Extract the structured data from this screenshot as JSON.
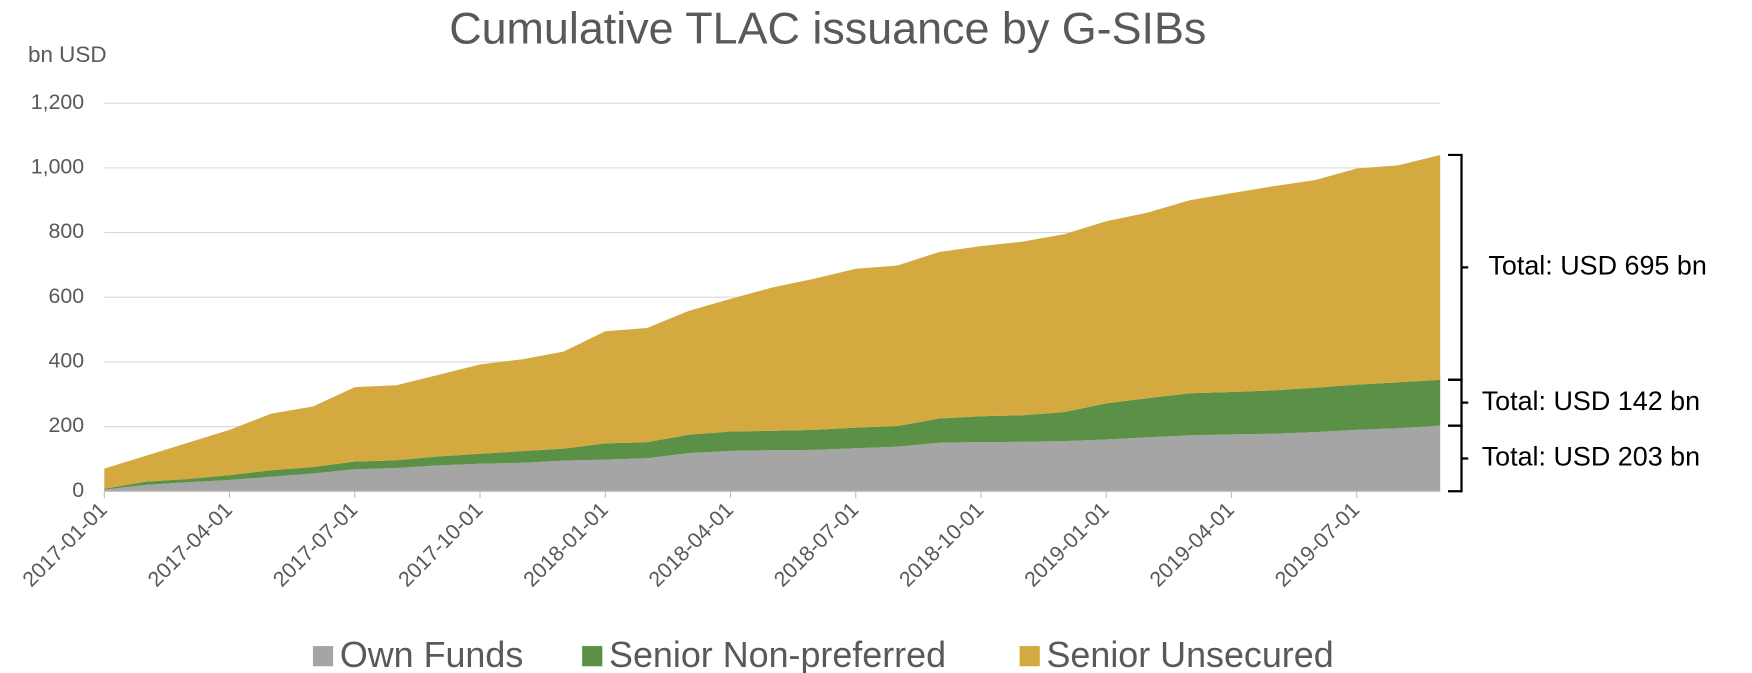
{
  "chart_data": {
    "type": "area",
    "stacked": true,
    "title": "Cumulative TLAC issuance by G-SIBs",
    "y_label": "bn USD",
    "x": [
      "2017-01-01",
      "2017-02-01",
      "2017-03-01",
      "2017-04-01",
      "2017-05-01",
      "2017-06-01",
      "2017-07-01",
      "2017-08-01",
      "2017-09-01",
      "2017-10-01",
      "2017-11-01",
      "2017-12-01",
      "2018-01-01",
      "2018-02-01",
      "2018-03-01",
      "2018-04-01",
      "2018-05-01",
      "2018-06-01",
      "2018-07-01",
      "2018-08-01",
      "2018-09-01",
      "2018-10-01",
      "2018-11-01",
      "2018-12-01",
      "2019-01-01",
      "2019-02-01",
      "2019-03-01",
      "2019-04-01",
      "2019-05-01",
      "2019-06-01",
      "2019-07-01",
      "2019-08-01",
      "2019-09-01"
    ],
    "xticks": [
      "2017-01-01",
      "2017-04-01",
      "2017-07-01",
      "2017-10-01",
      "2018-01-01",
      "2018-04-01",
      "2018-07-01",
      "2018-10-01",
      "2019-01-01",
      "2019-04-01",
      "2019-07-01"
    ],
    "series": [
      {
        "name": "Own Funds",
        "color": "#a5a5a5",
        "values": [
          5,
          20,
          28,
          35,
          45,
          55,
          68,
          72,
          80,
          85,
          88,
          95,
          98,
          102,
          118,
          125,
          127,
          128,
          133,
          138,
          150,
          152,
          153,
          155,
          160,
          167,
          173,
          176,
          178,
          183,
          190,
          195,
          203
        ]
      },
      {
        "name": "Senior Non-preferred",
        "color": "#5b9146",
        "values": [
          3,
          10,
          10,
          15,
          20,
          20,
          24,
          24,
          28,
          31,
          36,
          37,
          50,
          50,
          57,
          60,
          60,
          62,
          64,
          64,
          75,
          80,
          82,
          90,
          112,
          121,
          130,
          131,
          134,
          137,
          140,
          142,
          142
        ]
      },
      {
        "name": "Senior Unsecured",
        "color": "#d4a940",
        "values": [
          62,
          80,
          112,
          140,
          175,
          187,
          230,
          232,
          252,
          276,
          284,
          300,
          347,
          353,
          383,
          410,
          443,
          467,
          491,
          496,
          515,
          526,
          537,
          550,
          563,
          574,
          597,
          615,
          631,
          642,
          668,
          671,
          695
        ]
      }
    ],
    "annotations": [
      "Total: USD 203 bn",
      "Total: USD 142 bn",
      "Total: USD 695 bn"
    ],
    "ylim": [
      0,
      1200
    ],
    "yticks": [
      0,
      200,
      400,
      600,
      800,
      {
        "value": 1000,
        "label": "1,000"
      },
      {
        "value": 1200,
        "label": "1,200"
      }
    ],
    "grid": true,
    "legend": "bottom"
  }
}
